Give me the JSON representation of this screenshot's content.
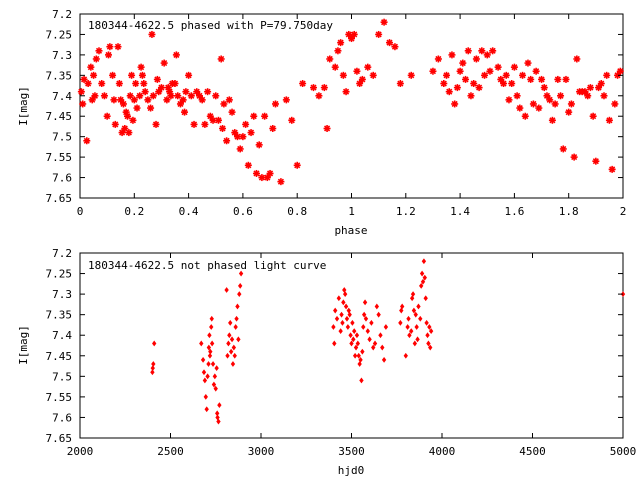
{
  "chart_data": [
    {
      "type": "scatter",
      "title": "180344-4622.5 phased with P=79.750day",
      "xlabel": "phase",
      "ylabel": "I[mag]",
      "xlim": [
        0,
        2
      ],
      "ylim": [
        7.65,
        7.2
      ],
      "y_inverted": true,
      "grid": false,
      "x_ticks": [
        "0",
        "0.2",
        "0.4",
        "0.6",
        "0.8",
        "1",
        "1.2",
        "1.4",
        "1.6",
        "1.8",
        "2"
      ],
      "x_tick_values": [
        0,
        0.2,
        0.4,
        0.6,
        0.8,
        1.0,
        1.2,
        1.4,
        1.6,
        1.8,
        2.0
      ],
      "y_ticks": [
        "7.2",
        "7.25",
        "7.3",
        "7.35",
        "7.4",
        "7.45",
        "7.5",
        "7.55",
        "7.6",
        "7.65"
      ],
      "y_tick_values": [
        7.2,
        7.25,
        7.3,
        7.35,
        7.4,
        7.45,
        7.5,
        7.55,
        7.6,
        7.65
      ],
      "marker": "star",
      "color": "#ff0000",
      "points": [
        [
          0.005,
          7.39
        ],
        [
          0.01,
          7.42
        ],
        [
          0.015,
          7.36
        ],
        [
          0.025,
          7.51
        ],
        [
          0.03,
          7.37
        ],
        [
          0.04,
          7.33
        ],
        [
          0.045,
          7.41
        ],
        [
          0.05,
          7.35
        ],
        [
          0.055,
          7.4
        ],
        [
          0.06,
          7.31
        ],
        [
          0.07,
          7.29
        ],
        [
          0.08,
          7.37
        ],
        [
          0.09,
          7.4
        ],
        [
          0.1,
          7.45
        ],
        [
          0.105,
          7.3
        ],
        [
          0.11,
          7.28
        ],
        [
          0.12,
          7.35
        ],
        [
          0.125,
          7.41
        ],
        [
          0.13,
          7.47
        ],
        [
          0.14,
          7.28
        ],
        [
          0.145,
          7.37
        ],
        [
          0.15,
          7.41
        ],
        [
          0.155,
          7.49
        ],
        [
          0.16,
          7.42
        ],
        [
          0.165,
          7.48
        ],
        [
          0.17,
          7.44
        ],
        [
          0.175,
          7.45
        ],
        [
          0.18,
          7.49
        ],
        [
          0.185,
          7.4
        ],
        [
          0.19,
          7.35
        ],
        [
          0.195,
          7.46
        ],
        [
          0.2,
          7.41
        ],
        [
          0.205,
          7.37
        ],
        [
          0.21,
          7.43
        ],
        [
          0.22,
          7.4
        ],
        [
          0.225,
          7.33
        ],
        [
          0.23,
          7.35
        ],
        [
          0.235,
          7.37
        ],
        [
          0.24,
          7.39
        ],
        [
          0.25,
          7.41
        ],
        [
          0.26,
          7.43
        ],
        [
          0.265,
          7.25
        ],
        [
          0.27,
          7.4
        ],
        [
          0.28,
          7.47
        ],
        [
          0.285,
          7.36
        ],
        [
          0.29,
          7.39
        ],
        [
          0.3,
          7.38
        ],
        [
          0.31,
          7.32
        ],
        [
          0.32,
          7.41
        ],
        [
          0.325,
          7.38
        ],
        [
          0.33,
          7.39
        ],
        [
          0.335,
          7.4
        ],
        [
          0.34,
          7.37
        ],
        [
          0.35,
          7.37
        ],
        [
          0.355,
          7.3
        ],
        [
          0.36,
          7.4
        ],
        [
          0.37,
          7.42
        ],
        [
          0.38,
          7.41
        ],
        [
          0.385,
          7.44
        ],
        [
          0.39,
          7.39
        ],
        [
          0.4,
          7.35
        ],
        [
          0.41,
          7.4
        ],
        [
          0.42,
          7.47
        ],
        [
          0.43,
          7.39
        ],
        [
          0.44,
          7.4
        ],
        [
          0.45,
          7.41
        ],
        [
          0.46,
          7.47
        ],
        [
          0.47,
          7.39
        ],
        [
          0.48,
          7.45
        ],
        [
          0.49,
          7.46
        ],
        [
          0.5,
          7.4
        ],
        [
          0.51,
          7.46
        ],
        [
          0.52,
          7.31
        ],
        [
          0.525,
          7.48
        ],
        [
          0.53,
          7.42
        ],
        [
          0.54,
          7.51
        ],
        [
          0.55,
          7.41
        ],
        [
          0.56,
          7.44
        ],
        [
          0.57,
          7.49
        ],
        [
          0.58,
          7.5
        ],
        [
          0.59,
          7.53
        ],
        [
          0.6,
          7.5
        ],
        [
          0.61,
          7.47
        ],
        [
          0.62,
          7.57
        ],
        [
          0.63,
          7.49
        ],
        [
          0.64,
          7.45
        ],
        [
          0.65,
          7.59
        ],
        [
          0.66,
          7.52
        ],
        [
          0.67,
          7.6
        ],
        [
          0.68,
          7.45
        ],
        [
          0.69,
          7.6
        ],
        [
          0.7,
          7.59
        ],
        [
          0.71,
          7.48
        ],
        [
          0.72,
          7.42
        ],
        [
          0.74,
          7.61
        ],
        [
          0.76,
          7.41
        ],
        [
          0.78,
          7.46
        ],
        [
          0.8,
          7.57
        ],
        [
          0.82,
          7.37
        ],
        [
          0.86,
          7.38
        ],
        [
          0.88,
          7.4
        ],
        [
          0.9,
          7.38
        ],
        [
          0.91,
          7.48
        ],
        [
          0.92,
          7.31
        ],
        [
          0.94,
          7.33
        ],
        [
          0.95,
          7.29
        ],
        [
          0.96,
          7.27
        ],
        [
          0.97,
          7.35
        ],
        [
          0.98,
          7.39
        ],
        [
          0.99,
          7.25
        ],
        [
          1.0,
          7.26
        ],
        [
          1.01,
          7.25
        ],
        [
          1.02,
          7.34
        ],
        [
          1.03,
          7.37
        ],
        [
          1.04,
          7.36
        ],
        [
          1.06,
          7.33
        ],
        [
          1.08,
          7.35
        ],
        [
          1.1,
          7.25
        ],
        [
          1.12,
          7.22
        ],
        [
          1.14,
          7.27
        ],
        [
          1.16,
          7.28
        ],
        [
          1.18,
          7.37
        ],
        [
          1.22,
          7.35
        ],
        [
          1.3,
          7.34
        ],
        [
          1.32,
          7.31
        ],
        [
          1.34,
          7.37
        ],
        [
          1.35,
          7.35
        ],
        [
          1.36,
          7.39
        ],
        [
          1.37,
          7.3
        ],
        [
          1.38,
          7.42
        ],
        [
          1.39,
          7.38
        ],
        [
          1.4,
          7.34
        ],
        [
          1.41,
          7.32
        ],
        [
          1.42,
          7.36
        ],
        [
          1.43,
          7.29
        ],
        [
          1.44,
          7.4
        ],
        [
          1.45,
          7.37
        ],
        [
          1.46,
          7.31
        ],
        [
          1.47,
          7.38
        ],
        [
          1.48,
          7.29
        ],
        [
          1.49,
          7.35
        ],
        [
          1.5,
          7.3
        ],
        [
          1.51,
          7.34
        ],
        [
          1.52,
          7.29
        ],
        [
          1.54,
          7.33
        ],
        [
          1.55,
          7.36
        ],
        [
          1.56,
          7.37
        ],
        [
          1.57,
          7.35
        ],
        [
          1.58,
          7.41
        ],
        [
          1.59,
          7.37
        ],
        [
          1.6,
          7.33
        ],
        [
          1.61,
          7.4
        ],
        [
          1.62,
          7.43
        ],
        [
          1.63,
          7.35
        ],
        [
          1.64,
          7.45
        ],
        [
          1.65,
          7.32
        ],
        [
          1.66,
          7.36
        ],
        [
          1.67,
          7.42
        ],
        [
          1.68,
          7.34
        ],
        [
          1.69,
          7.43
        ],
        [
          1.7,
          7.36
        ],
        [
          1.71,
          7.38
        ],
        [
          1.72,
          7.4
        ],
        [
          1.73,
          7.41
        ],
        [
          1.74,
          7.46
        ],
        [
          1.75,
          7.42
        ],
        [
          1.76,
          7.36
        ],
        [
          1.77,
          7.4
        ],
        [
          1.78,
          7.53
        ],
        [
          1.79,
          7.36
        ],
        [
          1.8,
          7.44
        ],
        [
          1.81,
          7.42
        ],
        [
          1.82,
          7.55
        ],
        [
          1.83,
          7.31
        ],
        [
          1.84,
          7.39
        ],
        [
          1.85,
          7.39
        ],
        [
          1.86,
          7.39
        ],
        [
          1.87,
          7.4
        ],
        [
          1.88,
          7.38
        ],
        [
          1.89,
          7.45
        ],
        [
          1.9,
          7.56
        ],
        [
          1.91,
          7.38
        ],
        [
          1.92,
          7.37
        ],
        [
          1.93,
          7.4
        ],
        [
          1.94,
          7.35
        ],
        [
          1.95,
          7.46
        ],
        [
          1.96,
          7.58
        ],
        [
          1.97,
          7.42
        ],
        [
          1.98,
          7.35
        ],
        [
          1.99,
          7.34
        ]
      ]
    },
    {
      "type": "scatter",
      "title": "180344-4622.5 not phased light curve",
      "xlabel": "hjd0",
      "ylabel": "I[mag]",
      "xlim": [
        2000,
        5000
      ],
      "ylim": [
        7.65,
        7.2
      ],
      "y_inverted": true,
      "grid": false,
      "x_ticks": [
        "2000",
        "2500",
        "3000",
        "3500",
        "4000",
        "4500",
        "5000"
      ],
      "x_tick_values": [
        2000,
        2500,
        3000,
        3500,
        4000,
        4500,
        5000
      ],
      "y_ticks": [
        "7.2",
        "7.25",
        "7.3",
        "7.35",
        "7.4",
        "7.45",
        "7.5",
        "7.55",
        "7.6",
        "7.65"
      ],
      "y_tick_values": [
        7.2,
        7.25,
        7.3,
        7.35,
        7.4,
        7.45,
        7.5,
        7.55,
        7.6,
        7.65
      ],
      "marker": "diamond",
      "color": "#ff0000",
      "points": [
        [
          2400,
          7.49
        ],
        [
          2402,
          7.48
        ],
        [
          2405,
          7.47
        ],
        [
          2410,
          7.42
        ],
        [
          2670,
          7.42
        ],
        [
          2680,
          7.46
        ],
        [
          2685,
          7.49
        ],
        [
          2690,
          7.51
        ],
        [
          2695,
          7.55
        ],
        [
          2700,
          7.58
        ],
        [
          2705,
          7.5
        ],
        [
          2710,
          7.47
        ],
        [
          2712,
          7.43
        ],
        [
          2715,
          7.4
        ],
        [
          2718,
          7.45
        ],
        [
          2720,
          7.44
        ],
        [
          2725,
          7.38
        ],
        [
          2728,
          7.36
        ],
        [
          2730,
          7.42
        ],
        [
          2735,
          7.47
        ],
        [
          2740,
          7.52
        ],
        [
          2745,
          7.5
        ],
        [
          2750,
          7.53
        ],
        [
          2755,
          7.48
        ],
        [
          2758,
          7.59
        ],
        [
          2760,
          7.6
        ],
        [
          2765,
          7.61
        ],
        [
          2770,
          7.57
        ],
        [
          2810,
          7.29
        ],
        [
          2815,
          7.45
        ],
        [
          2820,
          7.42
        ],
        [
          2825,
          7.4
        ],
        [
          2830,
          7.37
        ],
        [
          2835,
          7.44
        ],
        [
          2840,
          7.41
        ],
        [
          2845,
          7.47
        ],
        [
          2850,
          7.43
        ],
        [
          2855,
          7.45
        ],
        [
          2860,
          7.38
        ],
        [
          2865,
          7.36
        ],
        [
          2870,
          7.33
        ],
        [
          2875,
          7.41
        ],
        [
          2880,
          7.3
        ],
        [
          2885,
          7.28
        ],
        [
          2890,
          7.25
        ],
        [
          3400,
          7.38
        ],
        [
          3405,
          7.42
        ],
        [
          3410,
          7.34
        ],
        [
          3420,
          7.36
        ],
        [
          3430,
          7.31
        ],
        [
          3440,
          7.39
        ],
        [
          3445,
          7.35
        ],
        [
          3450,
          7.37
        ],
        [
          3455,
          7.32
        ],
        [
          3460,
          7.29
        ],
        [
          3465,
          7.3
        ],
        [
          3470,
          7.33
        ],
        [
          3475,
          7.36
        ],
        [
          3480,
          7.38
        ],
        [
          3485,
          7.34
        ],
        [
          3490,
          7.35
        ],
        [
          3495,
          7.4
        ],
        [
          3500,
          7.42
        ],
        [
          3505,
          7.37
        ],
        [
          3510,
          7.41
        ],
        [
          3515,
          7.39
        ],
        [
          3520,
          7.45
        ],
        [
          3525,
          7.43
        ],
        [
          3530,
          7.4
        ],
        [
          3535,
          7.42
        ],
        [
          3540,
          7.45
        ],
        [
          3545,
          7.47
        ],
        [
          3550,
          7.46
        ],
        [
          3555,
          7.51
        ],
        [
          3560,
          7.44
        ],
        [
          3565,
          7.38
        ],
        [
          3570,
          7.35
        ],
        [
          3575,
          7.32
        ],
        [
          3580,
          7.36
        ],
        [
          3590,
          7.39
        ],
        [
          3600,
          7.41
        ],
        [
          3610,
          7.37
        ],
        [
          3620,
          7.43
        ],
        [
          3630,
          7.42
        ],
        [
          3640,
          7.33
        ],
        [
          3650,
          7.35
        ],
        [
          3660,
          7.4
        ],
        [
          3670,
          7.43
        ],
        [
          3680,
          7.46
        ],
        [
          3690,
          7.38
        ],
        [
          3770,
          7.37
        ],
        [
          3775,
          7.34
        ],
        [
          3780,
          7.33
        ],
        [
          3800,
          7.45
        ],
        [
          3810,
          7.38
        ],
        [
          3815,
          7.36
        ],
        [
          3820,
          7.4
        ],
        [
          3830,
          7.39
        ],
        [
          3835,
          7.31
        ],
        [
          3840,
          7.3
        ],
        [
          3845,
          7.34
        ],
        [
          3850,
          7.42
        ],
        [
          3855,
          7.35
        ],
        [
          3860,
          7.38
        ],
        [
          3865,
          7.41
        ],
        [
          3870,
          7.33
        ],
        [
          3880,
          7.36
        ],
        [
          3885,
          7.28
        ],
        [
          3890,
          7.25
        ],
        [
          3895,
          7.27
        ],
        [
          3900,
          7.22
        ],
        [
          3905,
          7.26
        ],
        [
          3910,
          7.31
        ],
        [
          3915,
          7.37
        ],
        [
          3920,
          7.4
        ],
        [
          3925,
          7.42
        ],
        [
          3930,
          7.38
        ],
        [
          3935,
          7.43
        ],
        [
          3940,
          7.39
        ],
        [
          5000,
          7.3
        ]
      ]
    }
  ]
}
